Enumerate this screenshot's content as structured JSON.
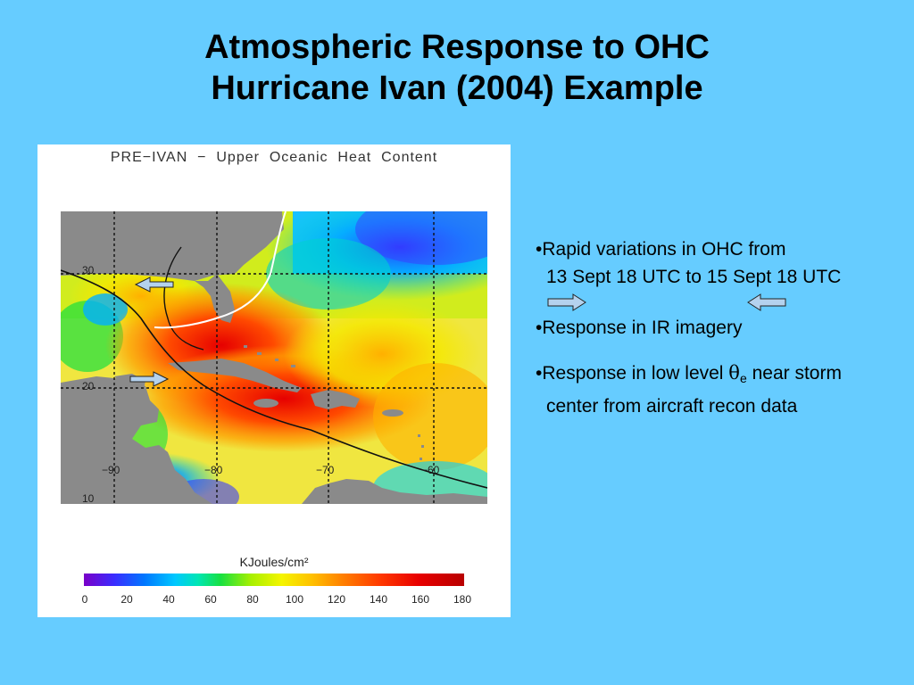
{
  "title": {
    "line1": "Atmospheric Response to OHC",
    "line2": "Hurricane Ivan (2004) Example"
  },
  "figure": {
    "map_title": "PRE−IVAN  −  Upper  Oceanic  Heat  Content",
    "lat_labels": [
      "30",
      "20",
      "10"
    ],
    "lon_labels": [
      "−90",
      "−80",
      "−70",
      "−60"
    ],
    "colorbar_label": "KJoules/cm²",
    "colorbar_ticks": [
      "0",
      "20",
      "40",
      "60",
      "80",
      "100",
      "120",
      "140",
      "160",
      "180"
    ]
  },
  "bullets": {
    "b1_line1": "•Rapid variations in OHC from",
    "b1_line2": "13 Sept 18 UTC to 15 Sept 18 UTC",
    "b2": "•Response in IR imagery",
    "b3_prefix": "•Response in low level ",
    "b3_symbol": "θ",
    "b3_sub": "e",
    "b3_suffix": " near storm",
    "b3_line2": "center from aircraft recon data"
  },
  "colors": {
    "background": "#66ccff",
    "land": "#8a8a8a",
    "arrow_fill": "#b4d2ee"
  }
}
